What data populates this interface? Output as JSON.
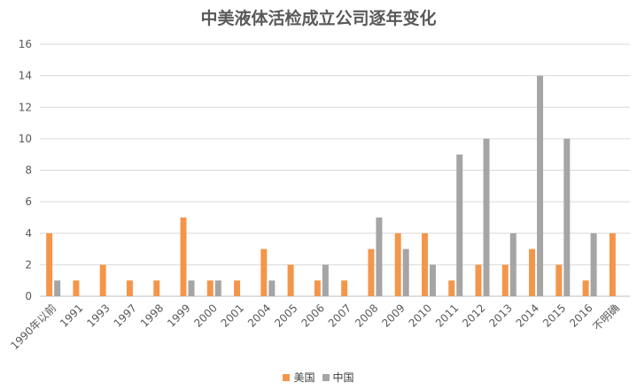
{
  "chart_data": {
    "type": "bar",
    "title": "中美液体活检成立公司逐年变化",
    "xlabel": "",
    "ylabel": "",
    "ylim": [
      0,
      16
    ],
    "yticks": [
      0,
      2,
      4,
      6,
      8,
      10,
      12,
      14,
      16
    ],
    "grid": true,
    "legend_position": "bottom",
    "categories": [
      "1990年以前",
      "1991",
      "1993",
      "1997",
      "1998",
      "1999",
      "2000",
      "2001",
      "2004",
      "2005",
      "2006",
      "2007",
      "2008",
      "2009",
      "2010",
      "2011",
      "2012",
      "2013",
      "2014",
      "2015",
      "2016",
      "不明确"
    ],
    "series": [
      {
        "name": "美国",
        "color": "#F4964A",
        "values": [
          4,
          1,
          2,
          1,
          1,
          5,
          1,
          1,
          3,
          2,
          1,
          1,
          3,
          4,
          4,
          1,
          2,
          2,
          3,
          2,
          1,
          4
        ]
      },
      {
        "name": "中国",
        "color": "#A5A5A5",
        "values": [
          1,
          0,
          0,
          0,
          0,
          1,
          1,
          0,
          1,
          0,
          2,
          0,
          5,
          3,
          2,
          9,
          10,
          4,
          14,
          10,
          4,
          0
        ]
      }
    ]
  }
}
